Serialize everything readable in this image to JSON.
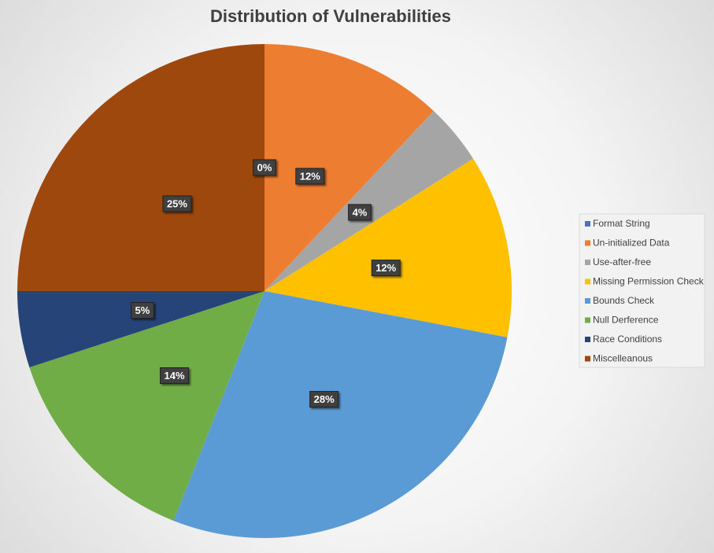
{
  "chart_data": {
    "type": "pie",
    "title": "Distribution of Vulnerabilities",
    "categories": [
      "Format String",
      "Un-initialized Data",
      "Use-after-free",
      "Missing Permission Check",
      "Bounds Check",
      "Null Derference",
      "Race Conditions",
      "Miscelleanous"
    ],
    "values": [
      0,
      12,
      4,
      12,
      28,
      14,
      5,
      25
    ],
    "value_labels": [
      "0%",
      "12%",
      "4%",
      "12%",
      "28%",
      "14%",
      "5%",
      "25%"
    ],
    "colors": [
      "#4472c4",
      "#ed7d31",
      "#a5a5a5",
      "#ffc000",
      "#5b9bd5",
      "#70ad47",
      "#264478",
      "#9e480e"
    ],
    "legend": "right"
  }
}
